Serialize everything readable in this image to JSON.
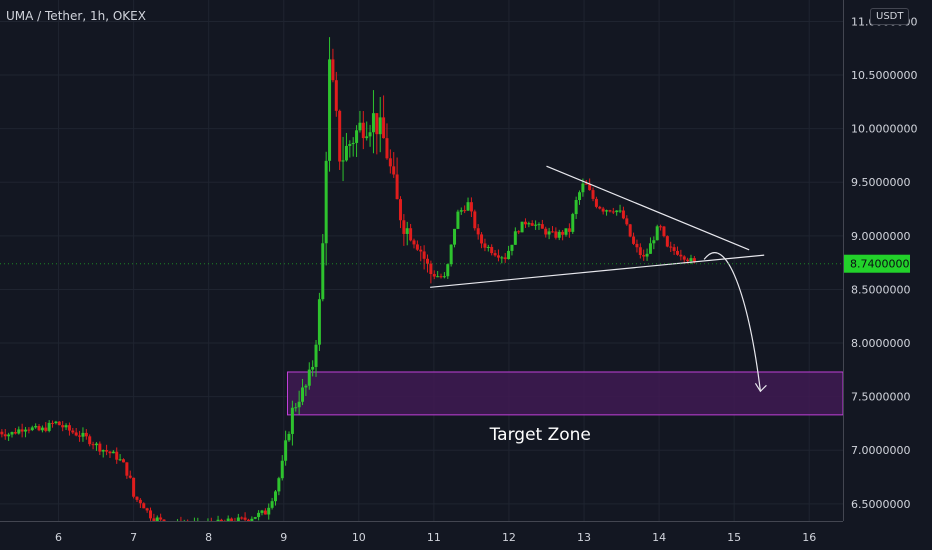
{
  "header": {
    "symbol_title": "UMA / Tether, 1h, OKEX",
    "currency_badge": "USDT"
  },
  "colors": {
    "background": "#131722",
    "grid": "#1f2430",
    "axis_text": "#d1d4dc",
    "bull": "#2ec32e",
    "bear": "#e01d1d",
    "zone_fill": "#3f1a52",
    "zone_border": "#c040d8",
    "trendline": "#e8e8ee",
    "price_tag": "#22d22a"
  },
  "chart_data": {
    "type": "candlestick",
    "title": "UMA / Tether, 1h, OKEX",
    "xlabel": "",
    "ylabel": "",
    "x_ticks": [
      "6",
      "7",
      "8",
      "9",
      "10",
      "11",
      "12",
      "13",
      "14",
      "15",
      "16"
    ],
    "y_ticks": [
      "6.5000000",
      "7.0000000",
      "7.5000000",
      "8.0000000",
      "8.5000000",
      "9.0000000",
      "9.5000000",
      "10.0000000",
      "10.5000000",
      "11.0000000"
    ],
    "ylim": [
      6.34,
      11.2
    ],
    "xlim": [
      5.22,
      16.45
    ],
    "grid": true,
    "last_price": "8.7400000",
    "price_path": [
      [
        5.2,
        7.18
      ],
      [
        5.4,
        7.15
      ],
      [
        5.6,
        7.22
      ],
      [
        5.8,
        7.18
      ],
      [
        6.0,
        7.26
      ],
      [
        6.2,
        7.18
      ],
      [
        6.4,
        7.12
      ],
      [
        6.6,
        7.02
      ],
      [
        6.8,
        6.95
      ],
      [
        6.9,
        6.88
      ],
      [
        7.0,
        6.72
      ],
      [
        7.05,
        6.55
      ],
      [
        7.15,
        6.52
      ],
      [
        7.25,
        6.4
      ],
      [
        7.5,
        6.3
      ],
      [
        8.0,
        6.3
      ],
      [
        8.5,
        6.35
      ],
      [
        8.8,
        6.42
      ],
      [
        8.95,
        6.65
      ],
      [
        9.05,
        6.95
      ],
      [
        9.15,
        7.35
      ],
      [
        9.25,
        7.5
      ],
      [
        9.35,
        7.6
      ],
      [
        9.45,
        7.85
      ],
      [
        9.55,
        8.6
      ],
      [
        9.65,
        10.6
      ],
      [
        9.7,
        10.35
      ],
      [
        9.8,
        9.7
      ],
      [
        9.95,
        9.9
      ],
      [
        10.1,
        10.05
      ],
      [
        10.25,
        10.1
      ],
      [
        10.4,
        9.85
      ],
      [
        10.55,
        9.3
      ],
      [
        10.7,
        9.05
      ],
      [
        10.85,
        8.9
      ],
      [
        11.0,
        8.65
      ],
      [
        11.2,
        8.6
      ],
      [
        11.35,
        9.2
      ],
      [
        11.5,
        9.3
      ],
      [
        11.65,
        8.95
      ],
      [
        11.85,
        8.85
      ],
      [
        12.0,
        8.8
      ],
      [
        12.15,
        9.05
      ],
      [
        12.3,
        9.15
      ],
      [
        12.5,
        9.05
      ],
      [
        12.65,
        9.0
      ],
      [
        12.85,
        9.05
      ],
      [
        12.95,
        9.35
      ],
      [
        13.05,
        9.5
      ],
      [
        13.2,
        9.3
      ],
      [
        13.3,
        9.25
      ],
      [
        13.45,
        9.25
      ],
      [
        13.55,
        9.2
      ],
      [
        13.7,
        8.92
      ],
      [
        13.85,
        8.78
      ],
      [
        13.95,
        8.95
      ],
      [
        14.05,
        9.1
      ],
      [
        14.15,
        8.88
      ],
      [
        14.3,
        8.85
      ],
      [
        14.45,
        8.78
      ],
      [
        14.5,
        8.74
      ]
    ],
    "annotations": [
      {
        "type": "rectangle",
        "label": "Target Zone",
        "x": [
          9.05,
          16.45
        ],
        "y": [
          7.33,
          7.73
        ]
      },
      {
        "type": "trendline",
        "points": [
          [
            10.95,
            8.52
          ],
          [
            15.4,
            8.82
          ]
        ]
      },
      {
        "type": "trendline",
        "points": [
          [
            12.5,
            9.65
          ],
          [
            15.2,
            8.87
          ]
        ]
      },
      {
        "type": "arrow-path",
        "points": [
          [
            14.6,
            8.78
          ],
          [
            14.9,
            8.82
          ],
          [
            15.2,
            8.4
          ],
          [
            15.35,
            7.55
          ]
        ]
      }
    ]
  }
}
